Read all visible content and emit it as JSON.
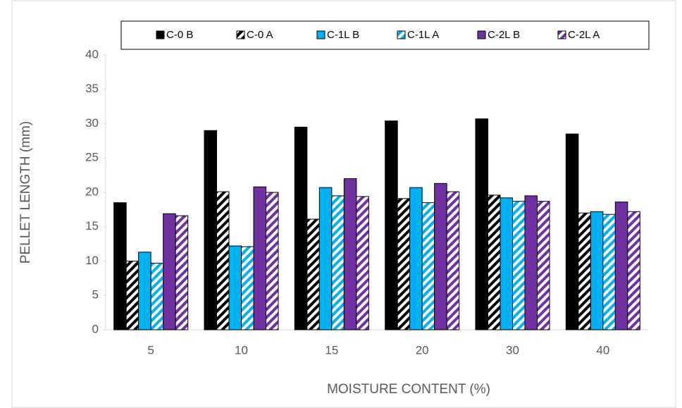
{
  "chart_data": {
    "type": "bar",
    "x_label": "MOISTURE CONTENT (%)",
    "y_label": "PELLET LENGTH (mm)",
    "categories": [
      "5",
      "10",
      "15",
      "20",
      "30",
      "40"
    ],
    "series": [
      {
        "name": "C-0 B",
        "color": "#000000",
        "hatch": false,
        "values": [
          18.5,
          29.0,
          29.5,
          30.4,
          30.7,
          28.5
        ]
      },
      {
        "name": "C-0 A",
        "color": "#000000",
        "hatch": true,
        "values": [
          10.0,
          20.1,
          16.1,
          19.1,
          19.6,
          17.0
        ]
      },
      {
        "name": "C-1L B",
        "color": "#00b0f0",
        "hatch": false,
        "values": [
          11.3,
          12.2,
          20.7,
          20.7,
          19.2,
          17.2
        ]
      },
      {
        "name": "C-1L A",
        "color": "#00b0f0",
        "hatch": true,
        "values": [
          9.7,
          12.1,
          19.5,
          18.5,
          18.7,
          16.8
        ]
      },
      {
        "name": "C-2L B",
        "color": "#7030a0",
        "hatch": false,
        "values": [
          16.9,
          20.8,
          22.0,
          21.3,
          19.5,
          18.6
        ]
      },
      {
        "name": "C-2L A",
        "color": "#7030a0",
        "hatch": true,
        "values": [
          16.6,
          20.0,
          19.4,
          20.1,
          18.7,
          17.2
        ]
      }
    ],
    "ylim": [
      0,
      40
    ],
    "yticks": [
      0,
      5,
      10,
      15,
      20,
      25,
      30,
      35,
      40
    ],
    "grid": false,
    "legend": "top"
  }
}
